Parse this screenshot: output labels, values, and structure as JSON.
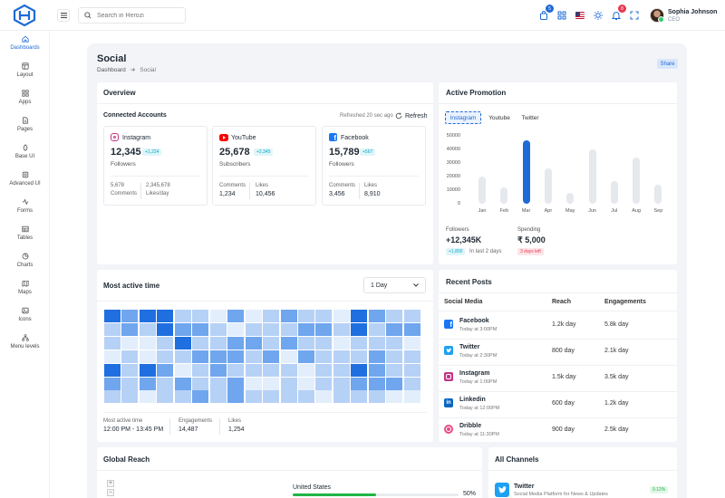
{
  "header": {
    "search_placeholder": "Search in Herozi",
    "cart_count": "5",
    "notif_count": "8",
    "user_name": "Sophia Johnson",
    "user_role": "CEO"
  },
  "sidebar": {
    "items": [
      {
        "label": "Dashboards",
        "icon": "home-icon",
        "active": true
      },
      {
        "label": "Layout",
        "icon": "layout-icon"
      },
      {
        "label": "Apps",
        "icon": "apps-icon"
      },
      {
        "label": "Pages",
        "icon": "pages-icon"
      },
      {
        "label": "Base UI",
        "icon": "base-ui-icon"
      },
      {
        "label": "Advanced UI",
        "icon": "advanced-ui-icon"
      },
      {
        "label": "Forms",
        "icon": "forms-icon"
      },
      {
        "label": "Tables",
        "icon": "tables-icon"
      },
      {
        "label": "Charts",
        "icon": "charts-icon"
      },
      {
        "label": "Maps",
        "icon": "maps-icon"
      },
      {
        "label": "Icons",
        "icon": "icons-icon"
      },
      {
        "label": "Menu levels",
        "icon": "menu-levels-icon"
      }
    ]
  },
  "page": {
    "title": "Social",
    "breadcrumb_home": "Dashboard",
    "breadcrumb_current": "Social",
    "share": "Share"
  },
  "overview": {
    "title": "Overview",
    "subtitle": "Connected Accounts",
    "refreshed": "Refreshed 20 sec ago",
    "refresh": "Refresh",
    "accounts": [
      {
        "name": "Instagram",
        "value": "12,345",
        "change": "+1,224",
        "sub": "Followers",
        "s1_value": "5,678",
        "s1_label": "Comments",
        "s2_value": "2,345,678",
        "s2_label": "Likes/day",
        "color": "#c13584"
      },
      {
        "name": "YouTube",
        "value": "25,678",
        "change": "+2,345",
        "sub": "Subscribers",
        "s1_value": "1,234",
        "s1_label": "Comments",
        "s2_value": "10,456",
        "s2_label": "Likes",
        "color": "#ff0000"
      },
      {
        "name": "Facebook",
        "value": "15,789",
        "change": "+567",
        "sub": "Followers",
        "s1_value": "3,456",
        "s1_label": "Comments",
        "s2_value": "8,910",
        "s2_label": "Likes",
        "color": "#1877f2"
      }
    ]
  },
  "promotion": {
    "title": "Active Promotion",
    "tabs": [
      "Instagram",
      "Youtube",
      "Twitter"
    ],
    "active_tab": "Instagram",
    "followers_label": "Followers",
    "followers_value": "+12,345K",
    "followers_badge": "+1,800",
    "followers_note": "In last 2 days",
    "spending_label": "Spending",
    "spending_value": "₹ 5,000",
    "spending_badge": "3 days left"
  },
  "chart_data": {
    "type": "bar",
    "categories": [
      "Jan",
      "Feb",
      "Mar",
      "Apr",
      "May",
      "Jun",
      "Jul",
      "Aug",
      "Sep"
    ],
    "values": [
      20000,
      12000,
      47000,
      26000,
      8000,
      40000,
      17000,
      34000,
      14000
    ],
    "highlight": "Mar",
    "yticks": [
      "50000",
      "40000",
      "30000",
      "20000",
      "10000",
      "0"
    ],
    "ylim": [
      0,
      50000
    ],
    "colors": {
      "bar": "#e5e8ed",
      "highlight": "#1e6bd6"
    }
  },
  "active_time": {
    "title": "Most active time",
    "range": "1 Day",
    "most_active_label": "Most active time",
    "most_active_value": "12:00 PM - 13:45 PM",
    "engagements_label": "Engagements",
    "engagements_value": "14,487",
    "likes_label": "Likes",
    "likes_value": "1,254",
    "heatmap": [
      [
        4,
        3,
        4,
        4,
        2,
        2,
        1,
        3,
        1,
        2,
        3,
        2,
        2,
        1,
        4,
        3,
        2,
        2
      ],
      [
        2,
        3,
        2,
        4,
        3,
        3,
        2,
        1,
        2,
        2,
        2,
        3,
        3,
        2,
        4,
        2,
        3,
        3
      ],
      [
        2,
        1,
        1,
        2,
        4,
        2,
        2,
        3,
        3,
        2,
        3,
        2,
        2,
        1,
        2,
        2,
        2,
        1
      ],
      [
        1,
        2,
        1,
        2,
        2,
        3,
        3,
        3,
        2,
        3,
        1,
        3,
        2,
        2,
        2,
        3,
        2,
        2
      ],
      [
        4,
        2,
        4,
        3,
        1,
        2,
        3,
        2,
        2,
        2,
        2,
        1,
        2,
        2,
        4,
        3,
        2,
        2
      ],
      [
        3,
        2,
        3,
        2,
        3,
        2,
        2,
        3,
        1,
        1,
        2,
        1,
        2,
        2,
        3,
        3,
        3,
        2
      ],
      [
        2,
        2,
        1,
        2,
        2,
        3,
        2,
        3,
        2,
        2,
        2,
        2,
        1,
        2,
        2,
        2,
        1,
        1
      ]
    ]
  },
  "recent_posts": {
    "title": "Recent Posts",
    "headers": [
      "Social Media",
      "Reach",
      "Engagements"
    ],
    "rows": [
      {
        "name": "Facebook",
        "time": "Today at 3:00PM",
        "reach": "1.2k day",
        "eng": "5.8k day",
        "color": "#1877f2",
        "icon": "facebook-icon"
      },
      {
        "name": "Twitter",
        "time": "Today at 2:30PM",
        "reach": "800 day",
        "eng": "2.1k day",
        "color": "#1da1f2",
        "icon": "twitter-icon"
      },
      {
        "name": "Instagram",
        "time": "Today at 1:00PM",
        "reach": "1.5k day",
        "eng": "3.5k day",
        "color": "#c13584",
        "icon": "instagram-icon"
      },
      {
        "name": "Linkedin",
        "time": "Today at 12:00PM",
        "reach": "600 day",
        "eng": "1.2k day",
        "color": "#0a66c2",
        "icon": "linkedin-icon"
      },
      {
        "name": "Dribble",
        "time": "Today at 11:30PM",
        "reach": "900 day",
        "eng": "2.5k day",
        "color": "#ea4c89",
        "icon": "dribbble-icon"
      }
    ]
  },
  "global_reach": {
    "title": "Global Reach",
    "country": "United States",
    "percent": "50%",
    "progress": 50
  },
  "all_channels": {
    "title": "All Channels",
    "item_name": "Twitter",
    "item_desc": "Social Media Platform for News & Updates",
    "item_badge": "9.12%"
  }
}
